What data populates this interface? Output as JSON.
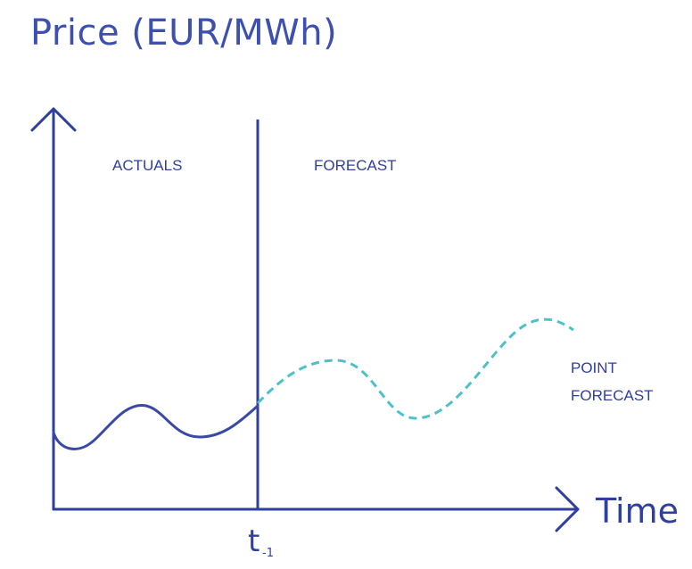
{
  "diagram": {
    "y_axis_label": "Price (EUR/MWh)",
    "x_axis_label": "Time",
    "region_left_label": "ACTUALS",
    "region_right_label": "FORECAST",
    "divider_label": "t",
    "divider_label_subscript": "-1",
    "forecast_line_label_line1": "POINT",
    "forecast_line_label_line2": "FORECAST"
  },
  "colors": {
    "axis": "#2f3f9e",
    "actuals_line": "#3849a8",
    "forecast_line": "#4cc1c8",
    "text": "#2f3f9e"
  },
  "icons": {
    "y_axis_arrow": "arrow-up-icon",
    "x_axis_arrow": "arrow-right-icon"
  }
}
